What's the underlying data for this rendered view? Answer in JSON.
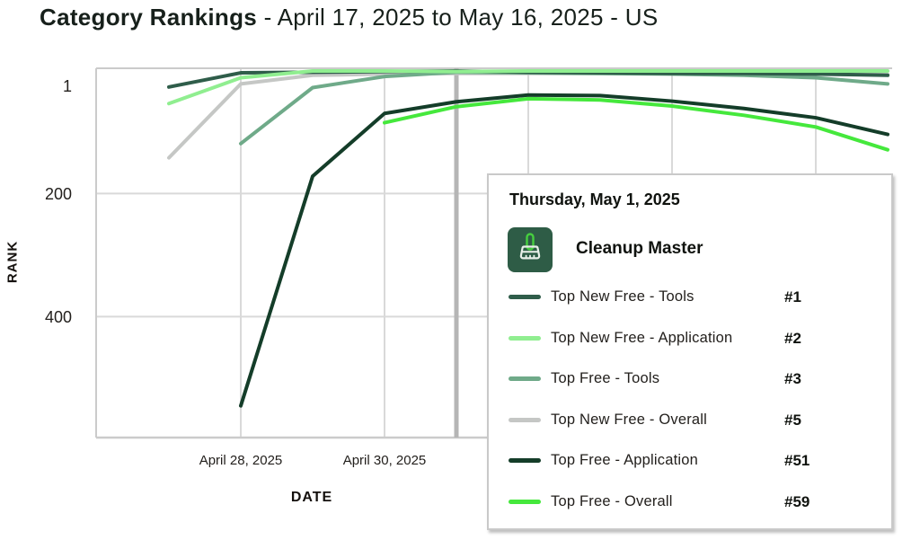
{
  "title": {
    "bold": "Category Rankings",
    "rest": " - April 17, 2025 to May 16, 2025 - US"
  },
  "axes": {
    "y_label": "RANK",
    "x_label": "DATE"
  },
  "tooltip": {
    "date": "Thursday, May 1, 2025",
    "app": "Cleanup Master",
    "app_icon": "broom-icon",
    "rows": [
      {
        "series": "Top New Free - Tools",
        "rank": "#1",
        "color": "#2f5d4a"
      },
      {
        "series": "Top New Free - Application",
        "rank": "#2",
        "color": "#90ee90"
      },
      {
        "series": "Top Free - Tools",
        "rank": "#3",
        "color": "#6faa89"
      },
      {
        "series": "Top New Free - Overall",
        "rank": "#5",
        "color": "#c5c7c5"
      },
      {
        "series": "Top Free - Application",
        "rank": "#51",
        "color": "#143d29"
      },
      {
        "series": "Top Free - Overall",
        "rank": "#59",
        "color": "#45e83c"
      }
    ]
  },
  "chart_data": {
    "type": "line",
    "title": "Category Rankings - April 17, 2025 to May 16, 2025 - US",
    "xlabel": "DATE",
    "ylabel": "RANK",
    "y_axis": {
      "inverted": true,
      "ticks": [
        1,
        200,
        400
      ],
      "gridline_ranks": [
        200,
        400
      ],
      "visible_range": [
        1,
        600
      ]
    },
    "x_axis": {
      "unit": "days since April 27, 2025",
      "visible_gridline_days": [
        1,
        3,
        5,
        7,
        9
      ],
      "labeled_ticks": [
        {
          "day": 1,
          "label": "April 28, 2025"
        },
        {
          "day": 3,
          "label": "April 30, 2025"
        }
      ]
    },
    "hover": {
      "day": 4,
      "date": "Thursday, May 1, 2025"
    },
    "grid": true,
    "legend_position": "tooltip-overlay",
    "colors": {
      "gridline": "#d9d9d9",
      "border": "#cbcbcb",
      "hover_line": "#b5b5b5"
    },
    "series": [
      {
        "name": "Top New Free - Overall",
        "color": "#c5c7c5",
        "points": [
          [
            0,
            142
          ],
          [
            1,
            22
          ],
          [
            2,
            8
          ],
          [
            3,
            6
          ],
          [
            4,
            5
          ],
          [
            5,
            5
          ],
          [
            6,
            5
          ],
          [
            7,
            5
          ],
          [
            8,
            5
          ],
          [
            9,
            6
          ],
          [
            10,
            7
          ]
        ]
      },
      {
        "name": "Top Free - Tools",
        "color": "#6faa89",
        "points": [
          [
            1,
            119
          ],
          [
            2,
            28
          ],
          [
            3,
            10
          ],
          [
            4,
            3
          ],
          [
            5,
            4
          ],
          [
            6,
            5
          ],
          [
            7,
            6
          ],
          [
            8,
            8
          ],
          [
            9,
            12
          ],
          [
            10,
            22
          ]
        ]
      },
      {
        "name": "Top New Free - Tools",
        "color": "#2f5d4a",
        "points": [
          [
            0,
            27
          ],
          [
            1,
            4
          ],
          [
            2,
            3
          ],
          [
            3,
            2
          ],
          [
            4,
            1
          ],
          [
            5,
            3
          ],
          [
            6,
            4
          ],
          [
            7,
            5
          ],
          [
            8,
            5
          ],
          [
            9,
            6
          ],
          [
            10,
            8
          ]
        ]
      },
      {
        "name": "Top New Free - Application",
        "color": "#90ee90",
        "points": [
          [
            0,
            54
          ],
          [
            1,
            12
          ],
          [
            2,
            1
          ],
          [
            3,
            1
          ],
          [
            4,
            2
          ],
          [
            5,
            1
          ],
          [
            6,
            1
          ],
          [
            7,
            1
          ],
          [
            8,
            1
          ],
          [
            9,
            1
          ],
          [
            10,
            1
          ]
        ]
      },
      {
        "name": "Top Free - Application",
        "color": "#143d29",
        "points": [
          [
            1,
            545
          ],
          [
            2,
            172
          ],
          [
            3,
            70
          ],
          [
            4,
            51
          ],
          [
            5,
            40
          ],
          [
            6,
            41
          ],
          [
            7,
            50
          ],
          [
            8,
            62
          ],
          [
            9,
            77
          ],
          [
            10,
            104
          ]
        ]
      },
      {
        "name": "Top Free - Overall",
        "color": "#45e83c",
        "points": [
          [
            3,
            85
          ],
          [
            4,
            59
          ],
          [
            5,
            46
          ],
          [
            6,
            48
          ],
          [
            7,
            58
          ],
          [
            8,
            73
          ],
          [
            9,
            92
          ],
          [
            10,
            129
          ]
        ]
      }
    ]
  }
}
